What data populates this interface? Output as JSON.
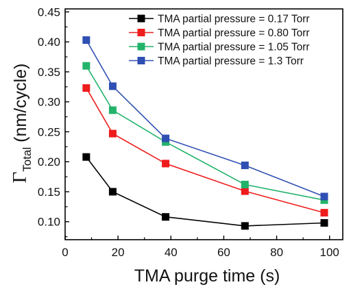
{
  "chart_data": {
    "type": "line",
    "xlabel": "TMA purge time (s)",
    "ylabel": {
      "symbol": "Γ",
      "subscript": "Total",
      "rest": " (nm/cycle)"
    },
    "xlim": [
      0,
      105
    ],
    "ylim": [
      0.07,
      0.455
    ],
    "xticks": [
      0,
      20,
      40,
      60,
      80,
      100
    ],
    "yticks": [
      0.1,
      0.15,
      0.2,
      0.25,
      0.3,
      0.35,
      0.4,
      0.45
    ],
    "xtick_labels": [
      "0",
      "20",
      "40",
      "60",
      "80",
      "100"
    ],
    "ytick_labels": [
      "0.10",
      "0.15",
      "0.20",
      "0.25",
      "0.30",
      "0.35",
      "0.40",
      "0.45"
    ],
    "x": [
      8,
      18,
      38,
      68,
      98
    ],
    "legend_position": "top-right",
    "grid": false,
    "series": [
      {
        "name": "TMA partial pressure = 0.17 Torr",
        "color": "#000000",
        "marker": "square",
        "values": [
          0.208,
          0.15,
          0.108,
          0.093,
          0.098
        ]
      },
      {
        "name": "TMA partial pressure = 0.80 Torr",
        "color": "#ee1c1c",
        "marker": "square",
        "values": [
          0.323,
          0.247,
          0.197,
          0.151,
          0.115
        ]
      },
      {
        "name": "TMA partial pressure = 1.05 Torr",
        "color": "#22b36a",
        "marker": "square",
        "values": [
          0.36,
          0.286,
          0.233,
          0.162,
          0.136
        ]
      },
      {
        "name": "TMA partial pressure = 1.3 Torr",
        "color": "#2f4fb3",
        "marker": "square",
        "values": [
          0.403,
          0.326,
          0.239,
          0.194,
          0.142
        ]
      }
    ]
  }
}
